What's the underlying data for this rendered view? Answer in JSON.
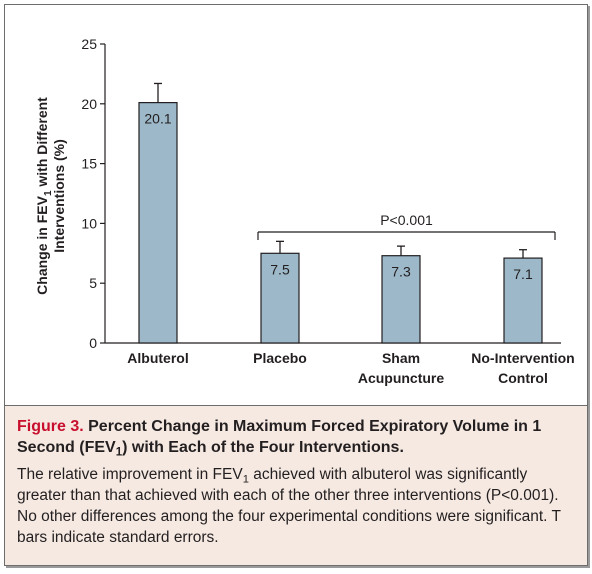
{
  "chart_data": {
    "type": "bar",
    "categories": [
      "Albuterol",
      "Placebo",
      "Sham Acupuncture",
      "No-Intervention Control"
    ],
    "category_lines": [
      [
        "Albuterol"
      ],
      [
        "Placebo"
      ],
      [
        "Sham",
        "Acupuncture"
      ],
      [
        "No-Intervention",
        "Control"
      ]
    ],
    "values": [
      20.1,
      7.5,
      7.3,
      7.1
    ],
    "errors": [
      1.6,
      1.0,
      0.8,
      0.7
    ],
    "value_labels": [
      "20.1",
      "7.5",
      "7.3",
      "7.1"
    ],
    "ylim": [
      0,
      25
    ],
    "yticks": [
      0,
      5,
      10,
      15,
      20,
      25
    ],
    "ylabel_line1_pre": "Change in FEV",
    "ylabel_line1_sub": "1",
    "ylabel_line1_post": " with Different",
    "ylabel_line2": "Interventions (%)",
    "annotation": "P<0.001",
    "bar_color": "#9cb8c9",
    "edge_color": "#231f20",
    "grid": false
  },
  "caption": {
    "label": "Figure 3.",
    "title_pre": " Percent Change in Maximum Forced Expiratory Volume in 1 Second (FEV",
    "title_sub": "1",
    "title_post": ") with Each of the Four Interventions.",
    "body_pre": "The relative improvement in FEV",
    "body_sub": "1",
    "body_post": " achieved with albuterol was significantly greater than that achieved with each of the other three interventions (P<0.001). No other differences among the four experimental conditions were significant. T bars indicate standard errors.",
    "label_color": "#c8102e",
    "background": "#f5e9e2"
  }
}
